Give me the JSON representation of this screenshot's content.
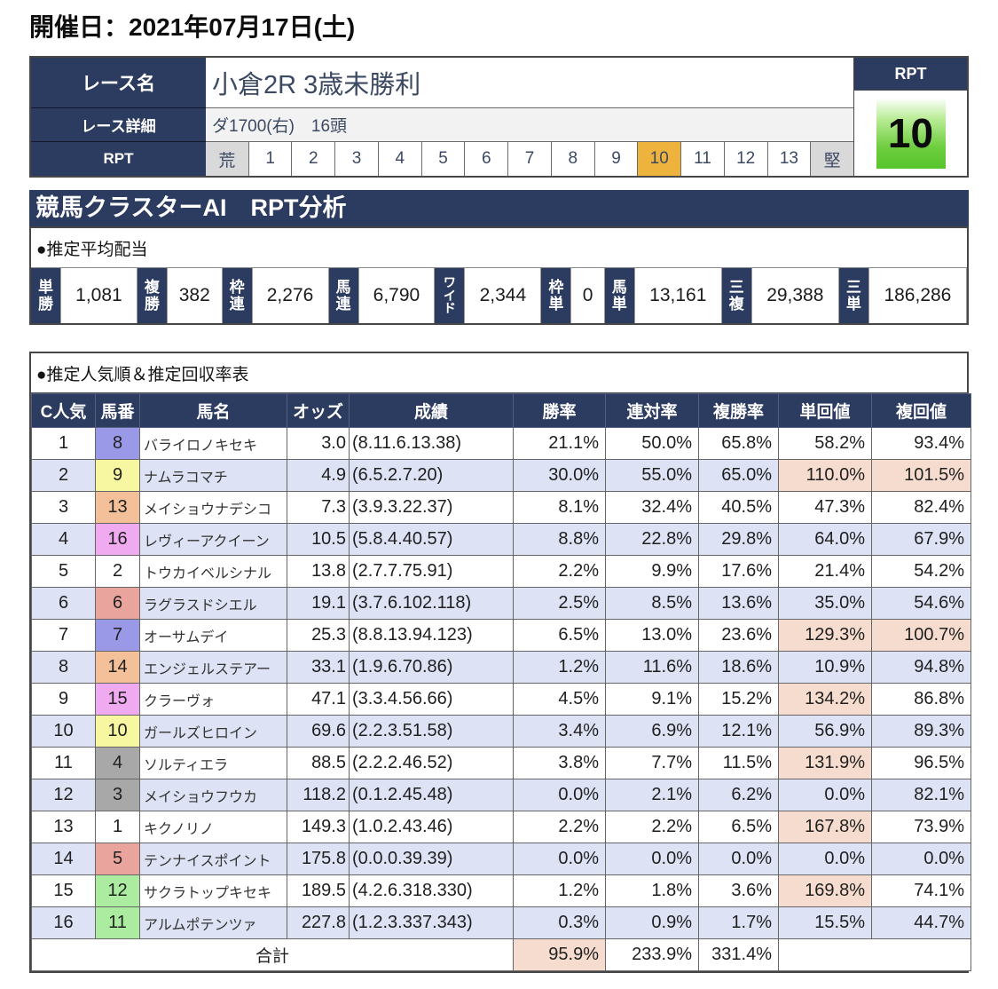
{
  "page": {
    "date": "開催日：2021年07月17日(土)"
  },
  "race": {
    "name_label": "レース名",
    "name": "小倉2R 3歳未勝利",
    "detail_label": "レース詳細",
    "detail": "ダ1700(右)　16頭",
    "rpt_label": "RPT",
    "rpt_scale": {
      "items": [
        "荒",
        "1",
        "2",
        "3",
        "4",
        "5",
        "6",
        "7",
        "8",
        "9",
        "10",
        "11",
        "12",
        "13",
        "堅"
      ],
      "selected": "10"
    },
    "rpt_box": {
      "label": "RPT",
      "value": "10"
    }
  },
  "section": {
    "title": "競馬クラスターAI　RPT分析"
  },
  "payouts": {
    "title": "●推定平均配当",
    "items": [
      {
        "label": "単勝",
        "value": "1,081"
      },
      {
        "label": "複勝",
        "value": "382"
      },
      {
        "label": "枠連",
        "value": "2,276"
      },
      {
        "label": "馬連",
        "value": "6,790"
      },
      {
        "label": "ワイド",
        "value": "2,344"
      },
      {
        "label": "枠単",
        "value": "0"
      },
      {
        "label": "馬単",
        "value": "13,161"
      },
      {
        "label": "三複",
        "value": "29,388"
      },
      {
        "label": "三単",
        "value": "186,286"
      }
    ]
  },
  "table": {
    "title": "●推定人気順＆推定回収率表",
    "headers": [
      "C人気",
      "馬番",
      "馬名",
      "オッズ",
      "成績",
      "勝率",
      "連対率",
      "複勝率",
      "単回値",
      "複回値"
    ],
    "rows": [
      {
        "c_rank": "1",
        "horse_no": "8",
        "waku_color": "#9a99e8",
        "name": "バライロノキセキ",
        "odds": "3.0",
        "record": "(8.11.6.13.38)",
        "win": "21.1%",
        "place2": "50.0%",
        "place3": "65.8%",
        "win_roi": "58.2%",
        "place_roi": "93.4%"
      },
      {
        "c_rank": "2",
        "horse_no": "9",
        "waku_color": "#f8f7a1",
        "name": "ナムラコマチ",
        "odds": "4.9",
        "record": "(6.5.2.7.20)",
        "win": "30.0%",
        "place2": "55.0%",
        "place3": "65.0%",
        "win_roi": "110.0%",
        "place_roi": "101.5%"
      },
      {
        "c_rank": "3",
        "horse_no": "13",
        "waku_color": "#f3c099",
        "name": "メイショウナデシコ",
        "odds": "7.3",
        "record": "(3.9.3.22.37)",
        "win": "8.1%",
        "place2": "32.4%",
        "place3": "40.5%",
        "win_roi": "47.3%",
        "place_roi": "82.4%"
      },
      {
        "c_rank": "4",
        "horse_no": "16",
        "waku_color": "#efaaf0",
        "name": "レヴィーアクイーン",
        "odds": "10.5",
        "record": "(5.8.4.40.57)",
        "win": "8.8%",
        "place2": "22.8%",
        "place3": "29.8%",
        "win_roi": "64.0%",
        "place_roi": "67.9%"
      },
      {
        "c_rank": "5",
        "horse_no": "2",
        "waku_color": "#ffffff",
        "name": "トウカイベルシナル",
        "odds": "13.8",
        "record": "(2.7.7.75.91)",
        "win": "2.2%",
        "place2": "9.9%",
        "place3": "17.6%",
        "win_roi": "21.4%",
        "place_roi": "54.2%"
      },
      {
        "c_rank": "6",
        "horse_no": "6",
        "waku_color": "#e9a49e",
        "name": "ラグラスドシエル",
        "odds": "19.1",
        "record": "(3.7.6.102.118)",
        "win": "2.5%",
        "place2": "8.5%",
        "place3": "13.6%",
        "win_roi": "35.0%",
        "place_roi": "54.6%"
      },
      {
        "c_rank": "7",
        "horse_no": "7",
        "waku_color": "#9a99e8",
        "name": "オーサムデイ",
        "odds": "25.3",
        "record": "(8.8.13.94.123)",
        "win": "6.5%",
        "place2": "13.0%",
        "place3": "23.6%",
        "win_roi": "129.3%",
        "place_roi": "100.7%"
      },
      {
        "c_rank": "8",
        "horse_no": "14",
        "waku_color": "#f3c099",
        "name": "エンジェルステアー",
        "odds": "33.1",
        "record": "(1.9.6.70.86)",
        "win": "1.2%",
        "place2": "11.6%",
        "place3": "18.6%",
        "win_roi": "10.9%",
        "place_roi": "94.8%"
      },
      {
        "c_rank": "9",
        "horse_no": "15",
        "waku_color": "#efaaf0",
        "name": "クラーヴォ",
        "odds": "47.1",
        "record": "(3.3.4.56.66)",
        "win": "4.5%",
        "place2": "9.1%",
        "place3": "15.2%",
        "win_roi": "134.2%",
        "place_roi": "86.8%"
      },
      {
        "c_rank": "10",
        "horse_no": "10",
        "waku_color": "#f8f7a1",
        "name": "ガールズヒロイン",
        "odds": "69.6",
        "record": "(2.2.3.51.58)",
        "win": "3.4%",
        "place2": "6.9%",
        "place3": "12.1%",
        "win_roi": "56.9%",
        "place_roi": "89.3%"
      },
      {
        "c_rank": "11",
        "horse_no": "4",
        "waku_color": "#a8a8a8",
        "name": "ソルティエラ",
        "odds": "88.5",
        "record": "(2.2.2.46.52)",
        "win": "3.8%",
        "place2": "7.7%",
        "place3": "11.5%",
        "win_roi": "131.9%",
        "place_roi": "96.5%"
      },
      {
        "c_rank": "12",
        "horse_no": "3",
        "waku_color": "#a8a8a8",
        "name": "メイショウフウカ",
        "odds": "118.2",
        "record": "(0.1.2.45.48)",
        "win": "0.0%",
        "place2": "2.1%",
        "place3": "6.2%",
        "win_roi": "0.0%",
        "place_roi": "82.1%"
      },
      {
        "c_rank": "13",
        "horse_no": "1",
        "waku_color": "#ffffff",
        "name": "キクノリノ",
        "odds": "149.3",
        "record": "(1.0.2.43.46)",
        "win": "2.2%",
        "place2": "2.2%",
        "place3": "6.5%",
        "win_roi": "167.8%",
        "place_roi": "73.9%"
      },
      {
        "c_rank": "14",
        "horse_no": "5",
        "waku_color": "#e9a49e",
        "name": "テンナイスポイント",
        "odds": "175.8",
        "record": "(0.0.0.39.39)",
        "win": "0.0%",
        "place2": "0.0%",
        "place3": "0.0%",
        "win_roi": "0.0%",
        "place_roi": "0.0%"
      },
      {
        "c_rank": "15",
        "horse_no": "12",
        "waku_color": "#abeca0",
        "name": "サクラトップキセキ",
        "odds": "189.5",
        "record": "(4.2.6.318.330)",
        "win": "1.2%",
        "place2": "1.8%",
        "place3": "3.6%",
        "win_roi": "169.8%",
        "place_roi": "74.1%"
      },
      {
        "c_rank": "16",
        "horse_no": "11",
        "waku_color": "#abeca0",
        "name": "アルムポテンツァ",
        "odds": "227.8",
        "record": "(1.2.3.337.343)",
        "win": "0.3%",
        "place2": "0.9%",
        "place3": "1.7%",
        "win_roi": "15.5%",
        "place_roi": "44.7%"
      }
    ],
    "total": {
      "label": "合計",
      "win": "95.9%",
      "place2": "233.9%",
      "place3": "331.4%"
    }
  },
  "colors": {
    "navy": "#2c3b60",
    "selected_rpt_orange": "#edb33c",
    "rpt_green": "#57c52d",
    "highlight_pink": "#f6dcce",
    "zebra_blue": "#dde3f5",
    "edge_gray": "#d9d9d9"
  }
}
